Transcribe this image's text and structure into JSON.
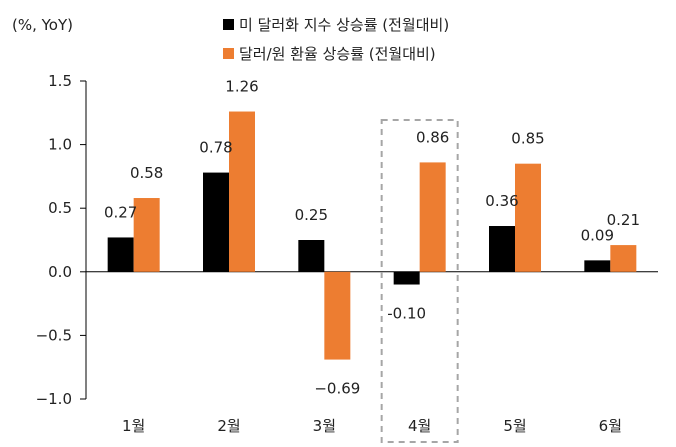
{
  "chart_data": {
    "type": "bar",
    "unit_label": "(%, YoY)",
    "categories": [
      "1월",
      "2월",
      "3월",
      "4월",
      "5월",
      "6월"
    ],
    "series": [
      {
        "name": "미 달러화 지수 상승률 (전월대비)",
        "color": "#000000",
        "values": [
          0.27,
          0.78,
          0.25,
          -0.1,
          0.36,
          0.09
        ],
        "labels": [
          "0.27",
          "0.78",
          "0.25",
          "-0.10",
          "0.36",
          "0.09"
        ]
      },
      {
        "name": "달러/원 환율 상승률 (전월대비)",
        "color": "#ED7D31",
        "values": [
          0.58,
          1.26,
          -0.69,
          0.86,
          0.85,
          0.21
        ],
        "labels": [
          "0.58",
          "1.26",
          "−0.69",
          "0.86",
          "0.85",
          "0.21"
        ]
      }
    ],
    "ylim": [
      -1.0,
      1.5
    ],
    "yticks": [
      1.5,
      1.0,
      0.5,
      0.0,
      -0.5,
      -1.0
    ],
    "ytick_labels": [
      "1.5",
      "1.0",
      "0.5",
      "0.0",
      "−0.5",
      "−1.0"
    ],
    "highlight_category": "4월",
    "legend_position": "top",
    "grid": false
  }
}
